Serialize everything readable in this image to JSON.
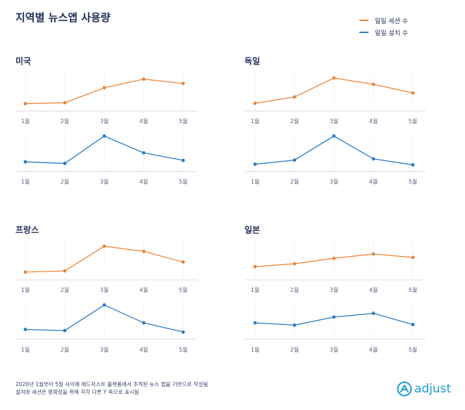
{
  "title": "지역별 뉴스앱 사용량",
  "legend": {
    "sessions": "일일 세션 수",
    "installs": "일일 설치 수"
  },
  "colors": {
    "sessions": "#e9853a",
    "installs": "#2f7cc4",
    "text": "#23315a",
    "grid": "#dcdcdc"
  },
  "footnote": {
    "line1": "2020년 1월부터 5월 사이에 애드저스트 플랫폼에서 추적된 뉴스 앱을 기반으로 작성됨",
    "line2": "설치와 세션은 명확성을 위해 각각 다른 Y 축으로 표시됨"
  },
  "logo": {
    "text": "adjust",
    "icon": "adjust-logo-icon"
  },
  "chart_data": [
    {
      "type": "line",
      "region": "미국",
      "title": "미국",
      "categories": [
        "1월",
        "2월",
        "3월",
        "4월",
        "5월"
      ],
      "series": [
        {
          "name": "일일 세션 수",
          "values": [
            0.9,
            1.2,
            6.4,
            9.4,
            7.9
          ]
        },
        {
          "name": "일일 설치 수",
          "values": [
            1.6,
            1.1,
            10.2,
            4.6,
            2.1
          ]
        }
      ]
    },
    {
      "type": "line",
      "region": "독일",
      "title": "독일",
      "categories": [
        "1월",
        "2월",
        "3월",
        "4월",
        "5월"
      ],
      "series": [
        {
          "name": "일일 세션 수",
          "values": [
            1.0,
            3.2,
            9.8,
            7.6,
            4.6
          ]
        },
        {
          "name": "일일 설치 수",
          "values": [
            0.8,
            2.2,
            10.2,
            2.6,
            0.6
          ]
        }
      ]
    },
    {
      "type": "line",
      "region": "프랑스",
      "title": "프랑스",
      "categories": [
        "1월",
        "2월",
        "3월",
        "4월",
        "5월"
      ],
      "series": [
        {
          "name": "일일 세션 수",
          "values": [
            1.0,
            1.4,
            10.0,
            8.2,
            4.5
          ]
        },
        {
          "name": "일일 설치 수",
          "values": [
            1.6,
            1.2,
            10.1,
            3.9,
            0.7
          ]
        }
      ]
    },
    {
      "type": "line",
      "region": "일본",
      "title": "일본",
      "categories": [
        "1월",
        "2월",
        "3월",
        "4월",
        "5월"
      ],
      "series": [
        {
          "name": "일일 세션 수",
          "values": [
            2.9,
            3.9,
            5.8,
            7.3,
            6.1
          ]
        },
        {
          "name": "일일 설치 수",
          "values": [
            3.9,
            3.1,
            5.9,
            7.2,
            3.3
          ]
        }
      ]
    }
  ]
}
